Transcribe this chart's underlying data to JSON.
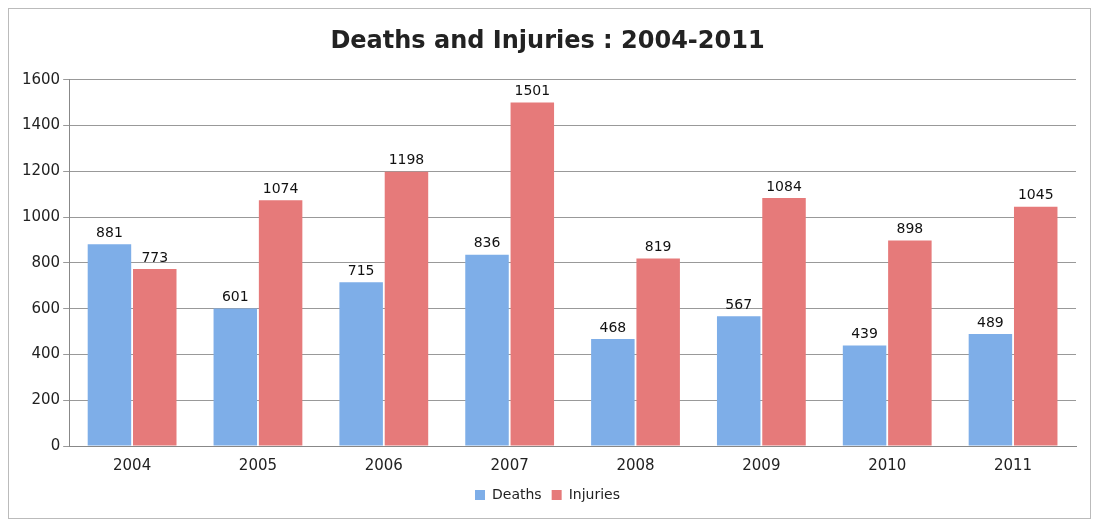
{
  "chart_data": {
    "type": "bar",
    "title": "Deaths and Injuries : 2004-2011",
    "categories": [
      "2004",
      "2005",
      "2006",
      "2007",
      "2008",
      "2009",
      "2010",
      "2011"
    ],
    "series": [
      {
        "name": "Deaths",
        "color": "#7eaee8",
        "values": [
          881,
          601,
          715,
          836,
          468,
          567,
          439,
          489
        ]
      },
      {
        "name": "Injuries",
        "color": "#e67a7a",
        "values": [
          773,
          1074,
          1198,
          1501,
          819,
          1084,
          898,
          1045
        ]
      }
    ],
    "ylim": [
      0,
      1600
    ],
    "yticks": [
      0,
      200,
      400,
      600,
      800,
      1000,
      1200,
      1400,
      1600
    ],
    "grid": "y",
    "legend": "bottom",
    "data_labels": true
  }
}
